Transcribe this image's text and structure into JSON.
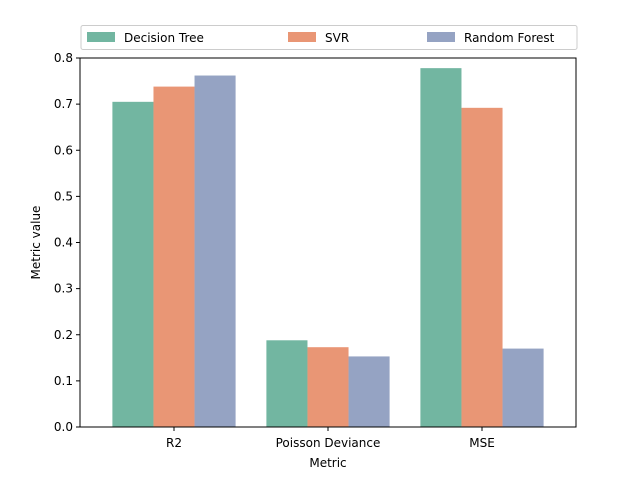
{
  "chart_data": {
    "type": "bar",
    "title": "",
    "xlabel": "Metric",
    "ylabel": "Metric value",
    "categories": [
      "R2",
      "Poisson Deviance",
      "MSE"
    ],
    "series": [
      {
        "name": "Decision Tree",
        "color": "#72b6a1",
        "values": [
          0.705,
          0.188,
          0.778
        ]
      },
      {
        "name": "SVR",
        "color": "#e99675",
        "values": [
          0.738,
          0.173,
          0.692
        ]
      },
      {
        "name": "Random Forest",
        "color": "#95a3c3",
        "values": [
          0.762,
          0.153,
          0.17
        ]
      }
    ],
    "ylim": [
      0,
      0.8
    ],
    "yticks": [
      "0.0",
      "0.1",
      "0.2",
      "0.3",
      "0.4",
      "0.5",
      "0.6",
      "0.7",
      "0.8"
    ],
    "grid": false,
    "legend_position": "top, above plot, 3 columns"
  }
}
